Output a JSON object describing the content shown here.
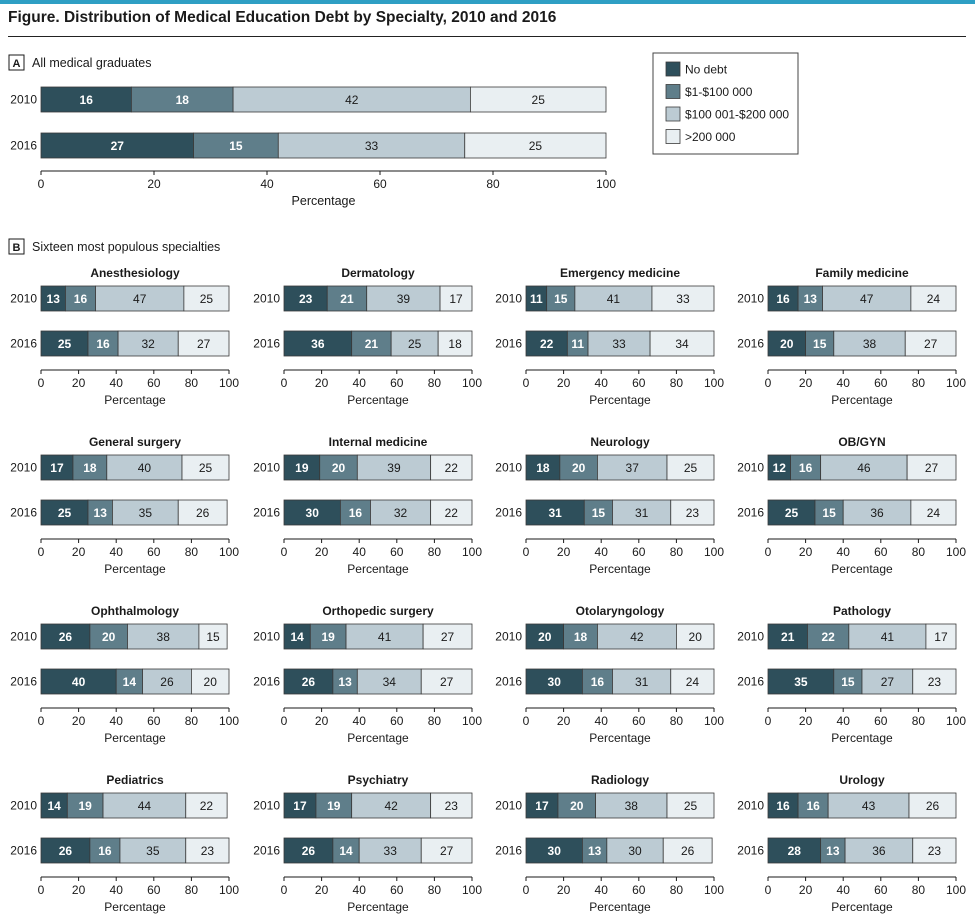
{
  "figure_title": "Figure. Distribution of Medical Education Debt by Specialty, 2010 and 2016",
  "colors": {
    "accent_line": "#2e9fc4",
    "no_debt": "#2e4f5b",
    "debt_1_100k": "#5f7e8a",
    "debt_100k_200k": "#bccbd3",
    "debt_over_200k": "#e9eff2"
  },
  "legend": [
    "No debt",
    "$1-$100 000",
    "$100 001-$200 000",
    ">200 000"
  ],
  "panel_a": {
    "letter": "A",
    "title": "All medical graduates",
    "years": [
      "2010",
      "2016"
    ],
    "values": [
      [
        16,
        18,
        42,
        25
      ],
      [
        27,
        15,
        33,
        25
      ]
    ]
  },
  "panel_b": {
    "letter": "B",
    "title": "Sixteen most populous specialties"
  },
  "x_axis": {
    "label": "Percentage",
    "ticks": [
      "0",
      "20",
      "40",
      "60",
      "80",
      "100"
    ],
    "ticks_b": [
      "0",
      "20",
      "40",
      "60",
      "80",
      "100"
    ]
  },
  "chart_data": {
    "type": "bar",
    "orientation": "horizontal",
    "stacked": true,
    "series": [
      "No debt",
      "$1-$100 000",
      "$100 001-$200 000",
      ">200 000"
    ],
    "xlim": [
      0,
      100
    ],
    "xlabel": "Percentage",
    "years": [
      "2010",
      "2016"
    ],
    "specialties": [
      {
        "name": "Anesthesiology",
        "y2010": [
          13,
          16,
          47,
          25
        ],
        "y2016": [
          25,
          16,
          32,
          27
        ]
      },
      {
        "name": "Dermatology",
        "y2010": [
          23,
          21,
          39,
          17
        ],
        "y2016": [
          36,
          21,
          25,
          18
        ]
      },
      {
        "name": "Emergency medicine",
        "y2010": [
          11,
          15,
          41,
          33
        ],
        "y2016": [
          22,
          11,
          33,
          34
        ]
      },
      {
        "name": "Family medicine",
        "y2010": [
          16,
          13,
          47,
          24
        ],
        "y2016": [
          20,
          15,
          38,
          27
        ]
      },
      {
        "name": "General surgery",
        "y2010": [
          17,
          18,
          40,
          25
        ],
        "y2016": [
          25,
          13,
          35,
          26
        ]
      },
      {
        "name": "Internal medicine",
        "y2010": [
          19,
          20,
          39,
          22
        ],
        "y2016": [
          30,
          16,
          32,
          22
        ]
      },
      {
        "name": "Neurology",
        "y2010": [
          18,
          20,
          37,
          25
        ],
        "y2016": [
          31,
          15,
          31,
          23
        ]
      },
      {
        "name": "OB/GYN",
        "y2010": [
          12,
          16,
          46,
          27
        ],
        "y2016": [
          25,
          15,
          36,
          24
        ]
      },
      {
        "name": "Ophthalmology",
        "y2010": [
          26,
          20,
          38,
          15
        ],
        "y2016": [
          40,
          14,
          26,
          20
        ]
      },
      {
        "name": "Orthopedic surgery",
        "y2010": [
          14,
          19,
          41,
          27
        ],
        "y2016": [
          26,
          13,
          34,
          27
        ]
      },
      {
        "name": "Otolaryngology",
        "y2010": [
          20,
          18,
          42,
          20
        ],
        "y2016": [
          30,
          16,
          31,
          24
        ]
      },
      {
        "name": "Pathology",
        "y2010": [
          21,
          22,
          41,
          17
        ],
        "y2016": [
          35,
          15,
          27,
          23
        ]
      },
      {
        "name": "Pediatrics",
        "y2010": [
          14,
          19,
          44,
          22
        ],
        "y2016": [
          26,
          16,
          35,
          23
        ]
      },
      {
        "name": "Psychiatry",
        "y2010": [
          17,
          19,
          42,
          23
        ],
        "y2016": [
          26,
          14,
          33,
          27
        ]
      },
      {
        "name": "Radiology",
        "y2010": [
          17,
          20,
          38,
          25
        ],
        "y2016": [
          30,
          13,
          30,
          26
        ]
      },
      {
        "name": "Urology",
        "y2010": [
          16,
          16,
          43,
          26
        ],
        "y2016": [
          28,
          13,
          36,
          23
        ]
      }
    ]
  }
}
